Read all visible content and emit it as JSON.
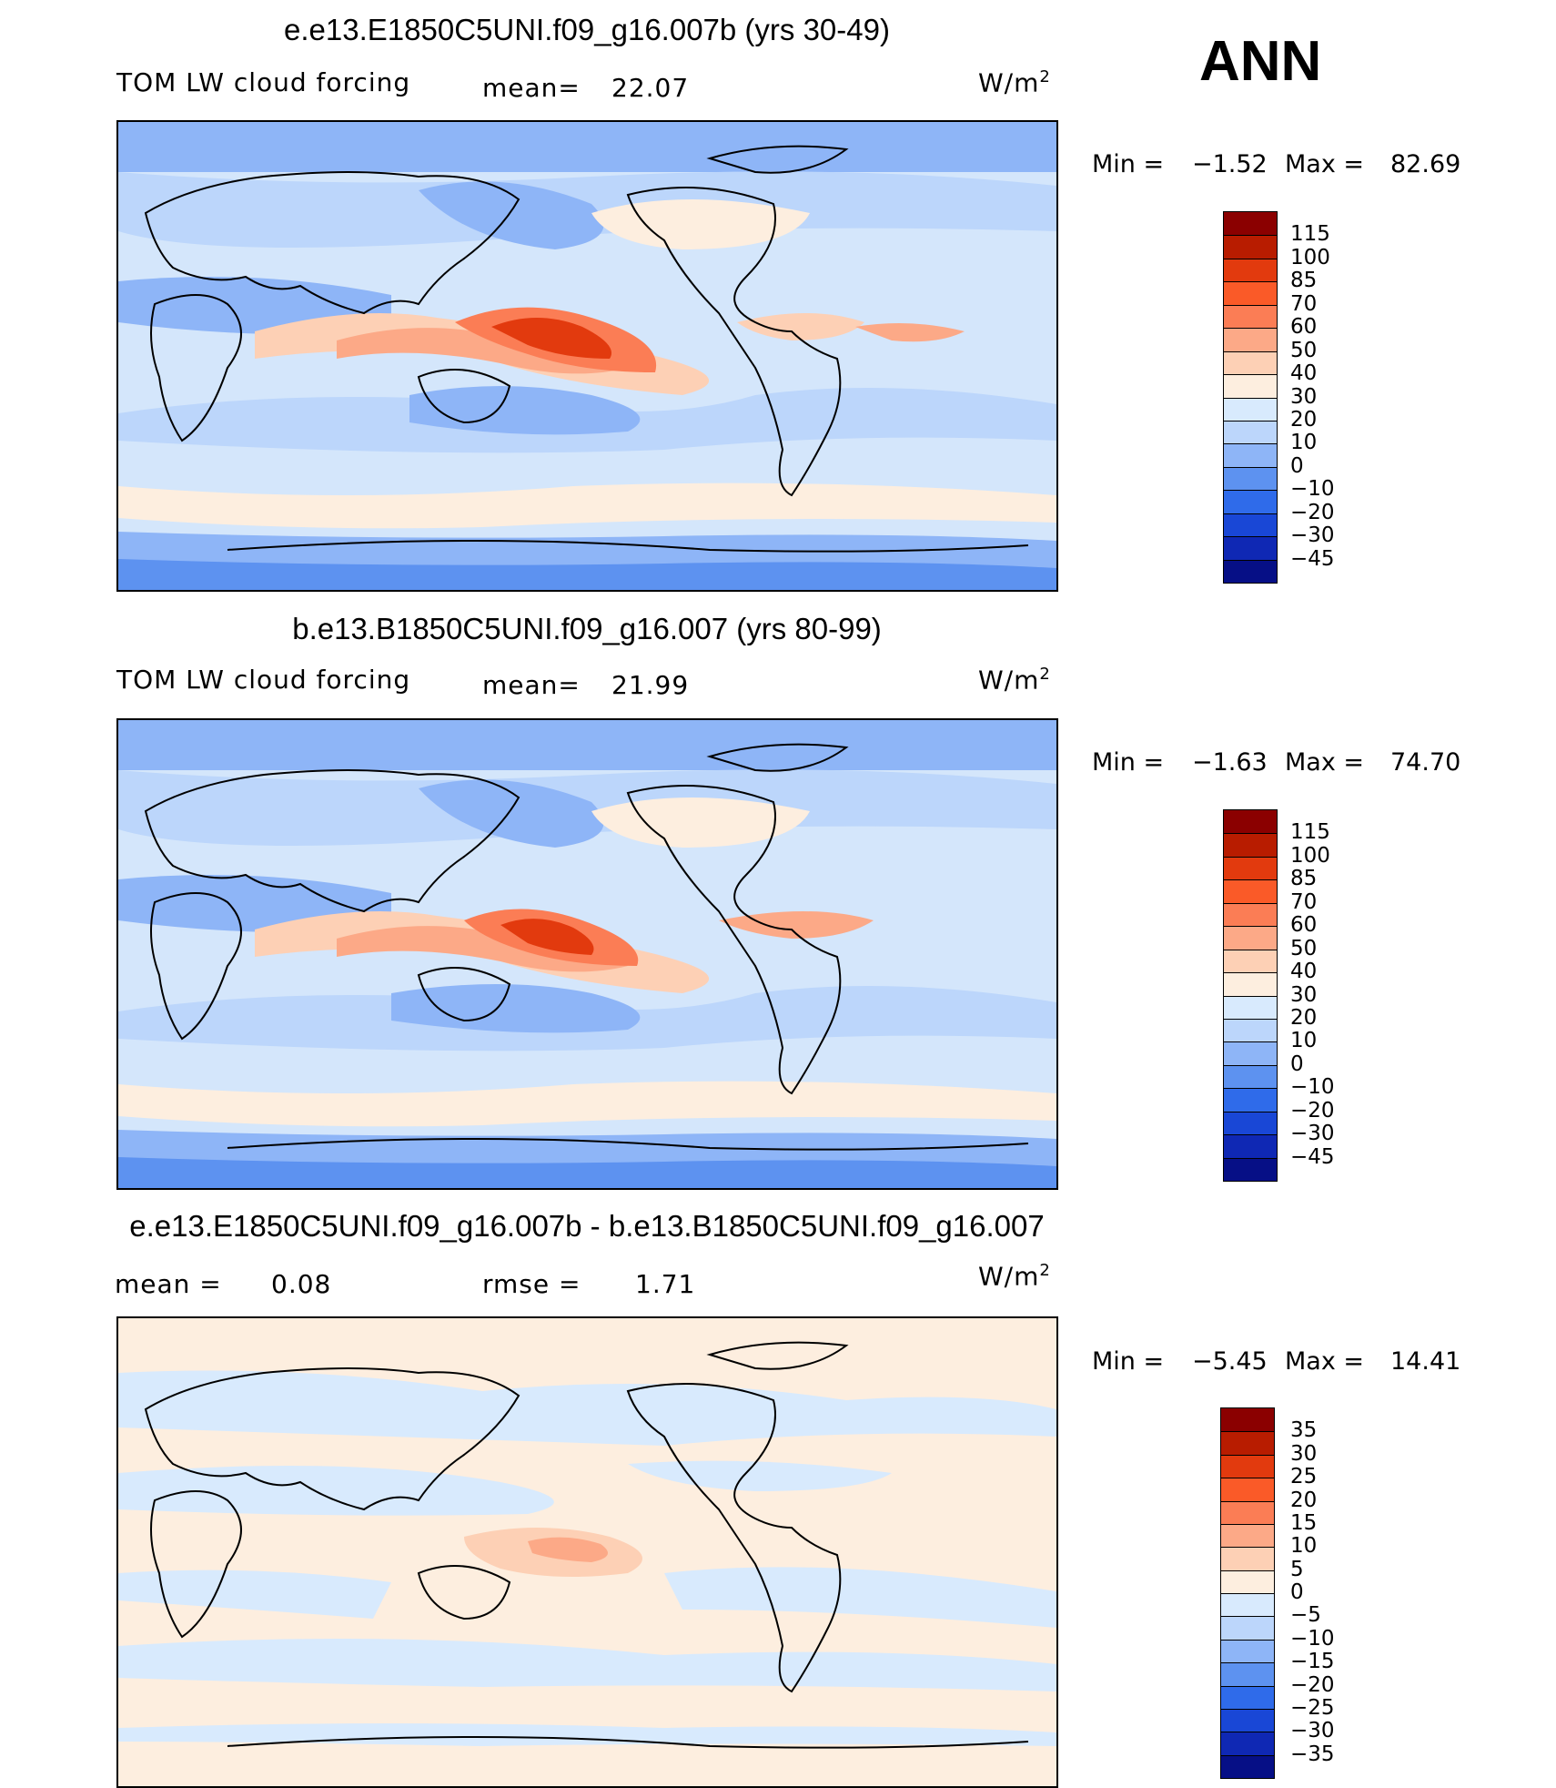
{
  "season": "ANN",
  "panels": [
    {
      "title": "e.e13.E1850C5UNI.f09_g16.007b (yrs 30-49)",
      "variable": "TOM LW cloud forcing",
      "stat1_label": "mean=",
      "stat1_value": "22.07",
      "units": "W/m",
      "units_exp": "2",
      "min_label": "Min =",
      "min_value": "−1.52",
      "max_label": "Max =",
      "max_value": "82.69",
      "colorbar": {
        "labels": [
          "115",
          "100",
          "85",
          "70",
          "60",
          "50",
          "40",
          "30",
          "20",
          "10",
          "0",
          "−10",
          "−20",
          "−30",
          "−45"
        ],
        "colors": [
          "#8b0000",
          "#b81c00",
          "#e23a0e",
          "#fa5a28",
          "#fb7d55",
          "#fca987",
          "#fdd0b5",
          "#fdeedf",
          "#d8eafd",
          "#bcd6fb",
          "#8eb5f7",
          "#5d92f0",
          "#2f6bea",
          "#1947d6",
          "#0f28b4",
          "#060f86"
        ]
      }
    },
    {
      "title": "b.e13.B1850C5UNI.f09_g16.007 (yrs 80-99)",
      "variable": "TOM LW cloud forcing",
      "stat1_label": "mean=",
      "stat1_value": "21.99",
      "units": "W/m",
      "units_exp": "2",
      "min_label": "Min =",
      "min_value": "−1.63",
      "max_label": "Max =",
      "max_value": "74.70",
      "colorbar": {
        "labels": [
          "115",
          "100",
          "85",
          "70",
          "60",
          "50",
          "40",
          "30",
          "20",
          "10",
          "0",
          "−10",
          "−20",
          "−30",
          "−45"
        ],
        "colors": [
          "#8b0000",
          "#b81c00",
          "#e23a0e",
          "#fa5a28",
          "#fb7d55",
          "#fca987",
          "#fdd0b5",
          "#fdeedf",
          "#d8eafd",
          "#bcd6fb",
          "#8eb5f7",
          "#5d92f0",
          "#2f6bea",
          "#1947d6",
          "#0f28b4",
          "#060f86"
        ]
      }
    },
    {
      "title": "e.e13.E1850C5UNI.f09_g16.007b - b.e13.B1850C5UNI.f09_g16.007",
      "variable": "",
      "stat1_label": "mean =",
      "stat1_value": "0.08",
      "stat2_label": "rmse =",
      "stat2_value": "1.71",
      "units": "W/m",
      "units_exp": "2",
      "min_label": "Min =",
      "min_value": "−5.45",
      "max_label": "Max =",
      "max_value": "14.41",
      "colorbar": {
        "labels": [
          "35",
          "30",
          "25",
          "20",
          "15",
          "10",
          "5",
          "0",
          "−5",
          "−10",
          "−15",
          "−20",
          "−25",
          "−30",
          "−35"
        ],
        "colors": [
          "#8b0000",
          "#b81c00",
          "#e23a0e",
          "#fa5a28",
          "#fb7d55",
          "#fca987",
          "#fdd0b5",
          "#fdeedf",
          "#d8eafd",
          "#bcd6fb",
          "#8eb5f7",
          "#5d92f0",
          "#2f6bea",
          "#1947d6",
          "#0f28b4",
          "#060f86"
        ]
      }
    }
  ]
}
